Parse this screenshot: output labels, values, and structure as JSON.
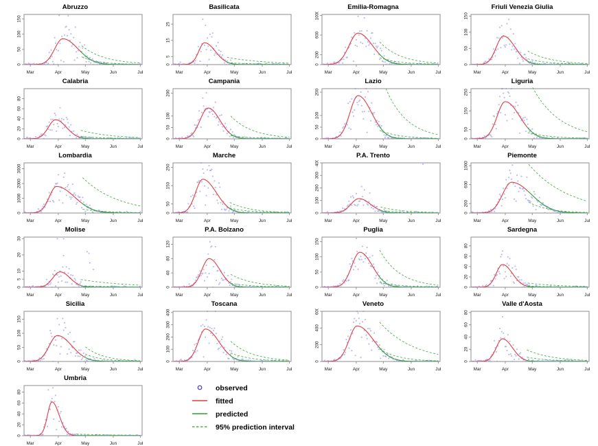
{
  "figure": {
    "background": "#ffffff"
  },
  "colors": {
    "observed_point": "#8f8ff0",
    "observed_legend": "#3b3bd1",
    "fitted": "#e23b3b",
    "predicted": "#2f9e2f",
    "interval": "#4eb04e",
    "box": "#8c8c8c",
    "tick_text": "#1a1a1a"
  },
  "legend": {
    "items": [
      {
        "label": "observed",
        "type": "point"
      },
      {
        "label": "fitted",
        "type": "line-solid-red"
      },
      {
        "label": "predicted",
        "type": "line-solid-green"
      },
      {
        "label": "95% prediction interval",
        "type": "line-dashed-green"
      }
    ]
  },
  "chart_data": {
    "type": "scatter",
    "description": "Small-multiples of daily counts by Italian region: observed points, fitted curve (red), predicted curve (green), 95% prediction interval (green dashed)",
    "layout": {
      "rows": 6,
      "cols": 4,
      "legend_cell": {
        "row": 6,
        "col": 2
      }
    },
    "x_ticks": [
      "Mar",
      "Apr",
      "May",
      "Jun",
      "Jul"
    ],
    "x_tick_days": [
      0,
      31,
      61,
      92,
      122
    ],
    "x_domain": [
      -7,
      124
    ],
    "data_start_day": -6,
    "panels": [
      {
        "title": "Abruzzo",
        "ylim": [
          0,
          165
        ],
        "yticks": [
          0,
          50,
          100,
          150
        ],
        "fit": [
          85,
          36,
          9,
          17,
          56
        ],
        "upper": [
          62,
          5
        ],
        "lower": [
          26,
          0.8
        ],
        "obs": {
          "cv": 0.42,
          "seed": 1,
          "scale_end": 1,
          "max": 160
        }
      },
      {
        "title": "Basilicata",
        "ylim": [
          0,
          31
        ],
        "yticks": [
          0,
          5,
          15,
          25
        ],
        "fit": [
          13.5,
          28,
          6.5,
          12,
          52
        ],
        "upper": [
          4.5,
          0.9
        ],
        "lower": [
          1.2,
          0.15
        ],
        "obs": {
          "cv": 0.5,
          "seed": 2,
          "scale_end": 1,
          "max": 30
        }
      },
      {
        "title": "Emilia-Romagna",
        "ylim": [
          0,
          1020
        ],
        "yticks": [
          0,
          200,
          600,
          1000
        ],
        "fit": [
          640,
          33,
          10,
          16,
          56
        ],
        "upper": [
          460,
          30
        ],
        "lower": [
          140,
          8
        ],
        "obs": {
          "cv": 0.32,
          "seed": 3,
          "scale_end": 1,
          "max": 980
        }
      },
      {
        "title": "Friuli Venezia Giulia",
        "ylim": [
          0,
          155
        ],
        "yticks": [
          0,
          50,
          100,
          150
        ],
        "fit": [
          88,
          29,
          8,
          13,
          55
        ],
        "upper": [
          42,
          3.5
        ],
        "lower": [
          18,
          1
        ],
        "obs": {
          "cv": 0.4,
          "seed": 4,
          "scale_end": 1,
          "max": 150
        }
      },
      {
        "title": "Calabria",
        "ylim": [
          0,
          100
        ],
        "yticks": [
          0,
          20,
          40,
          60,
          80
        ],
        "fit": [
          38,
          28,
          8,
          12,
          55
        ],
        "upper": [
          17,
          2.5
        ],
        "lower": [
          5,
          0.4
        ],
        "obs": {
          "cv": 0.45,
          "seed": 5,
          "scale_end": 1,
          "max": 97
        }
      },
      {
        "title": "Campania",
        "ylim": [
          0,
          220
        ],
        "yticks": [
          0,
          50,
          100,
          200
        ],
        "fit": [
          135,
          32,
          9,
          13,
          56
        ],
        "upper": [
          100,
          7
        ],
        "lower": [
          14,
          1
        ],
        "obs": {
          "cv": 0.35,
          "seed": 6,
          "scale_end": 1,
          "max": 215
        }
      },
      {
        "title": "Lazio",
        "ylim": [
          0,
          215
        ],
        "yticks": [
          0,
          50,
          100,
          200
        ],
        "fit": [
          185,
          33,
          9,
          15,
          56
        ],
        "upper": [
          290,
          18
        ],
        "lower": [
          36,
          2
        ],
        "obs": {
          "cv": 0.3,
          "seed": 7,
          "scale_end": 0.25,
          "max": 210
        }
      },
      {
        "title": "Liguria",
        "ylim": [
          0,
          270
        ],
        "yticks": [
          0,
          50,
          150,
          250
        ],
        "fit": [
          200,
          31,
          9,
          16,
          55
        ],
        "upper": [
          330,
          38
        ],
        "lower": [
          33,
          3
        ],
        "obs": {
          "cv": 0.35,
          "seed": 8,
          "scale_end": 0.3,
          "max": 260
        }
      },
      {
        "title": "Lombardia",
        "ylim": [
          0,
          3400
        ],
        "yticks": [
          0,
          1000,
          2000,
          3000
        ],
        "fit": [
          1800,
          29,
          8,
          20,
          57
        ],
        "upper": [
          2400,
          480
        ],
        "lower": [
          260,
          25
        ],
        "obs": {
          "cv": 0.32,
          "seed": 9,
          "scale_end": 0.45,
          "max": 3300
        }
      },
      {
        "title": "Marche",
        "ylim": [
          0,
          275
        ],
        "yticks": [
          0,
          50,
          150,
          250
        ],
        "fit": [
          185,
          26,
          8,
          15,
          55
        ],
        "upper": [
          58,
          3.5
        ],
        "lower": [
          28,
          1.5
        ],
        "obs": {
          "cv": 0.35,
          "seed": 10,
          "scale_end": 1,
          "max": 270
        }
      },
      {
        "title": "P.A. Trento",
        "ylim": [
          0,
          400
        ],
        "yticks": [
          0,
          100,
          200,
          300,
          400
        ],
        "fit": [
          115,
          34,
          9,
          13,
          57
        ],
        "upper": [
          48,
          4
        ],
        "lower": [
          22,
          1
        ],
        "obs": {
          "cv": 0.35,
          "seed": 11,
          "scale_end": 1,
          "max": 170,
          "extra": [
            [
              105,
              390
            ]
          ]
        }
      },
      {
        "title": "Piemonte",
        "ylim": [
          0,
          1060
        ],
        "yticks": [
          0,
          200,
          600,
          1000
        ],
        "fit": [
          650,
          38,
          10,
          22,
          56
        ],
        "upper": [
          1030,
          250
        ],
        "lower": [
          230,
          12
        ],
        "obs": {
          "cv": 0.3,
          "seed": 12,
          "scale_end": 0.3,
          "max": 960
        }
      },
      {
        "title": "Molise",
        "ylim": [
          0,
          31
        ],
        "yticks": [
          0,
          5,
          10,
          20,
          30
        ],
        "fit": [
          9.5,
          33,
          8,
          11,
          55
        ],
        "upper": [
          4.8,
          1.3
        ],
        "lower": [
          0.9,
          0.15
        ],
        "obs": {
          "cv": 0.55,
          "seed": 13,
          "scale_end": 1,
          "max": 30,
          "extra": [
            [
              30,
              30
            ],
            [
              37,
              30
            ],
            [
              63,
              22
            ],
            [
              65,
              21
            ],
            [
              66,
              15
            ],
            [
              70,
              11
            ]
          ]
        }
      },
      {
        "title": "P.A. Bolzano",
        "ylim": [
          0,
          140
        ],
        "yticks": [
          0,
          40,
          80,
          120
        ],
        "fit": [
          80,
          33,
          8,
          12,
          56
        ],
        "upper": [
          36,
          3
        ],
        "lower": [
          11,
          0.8
        ],
        "obs": {
          "cv": 0.38,
          "seed": 14,
          "scale_end": 1,
          "max": 140
        }
      },
      {
        "title": "Puglia",
        "ylim": [
          0,
          165
        ],
        "yticks": [
          0,
          50,
          100,
          150
        ],
        "fit": [
          115,
          35,
          9,
          14,
          56
        ],
        "upper": [
          122,
          7
        ],
        "lower": [
          16,
          1
        ],
        "obs": {
          "cv": 0.32,
          "seed": 15,
          "scale_end": 1,
          "max": 160
        }
      },
      {
        "title": "Sardegna",
        "ylim": [
          0,
          97
        ],
        "yticks": [
          0,
          20,
          40,
          60,
          80
        ],
        "fit": [
          44,
          28,
          7,
          11,
          55
        ],
        "upper": [
          8,
          1.5
        ],
        "lower": [
          2.5,
          0.25
        ],
        "obs": {
          "cv": 0.5,
          "seed": 16,
          "scale_end": 1,
          "max": 95
        }
      },
      {
        "title": "Sicilia",
        "ylim": [
          0,
          178
        ],
        "yticks": [
          0,
          50,
          100,
          150
        ],
        "fit": [
          92,
          30,
          9,
          16,
          60
        ],
        "upper": [
          52,
          2.5
        ],
        "lower": [
          26,
          1
        ],
        "obs": {
          "cv": 0.4,
          "seed": 17,
          "scale_end": 1,
          "max": 175
        }
      },
      {
        "title": "Toscana",
        "ylim": [
          0,
          410
        ],
        "yticks": [
          0,
          100,
          200,
          300,
          400
        ],
        "fit": [
          265,
          29,
          8,
          15,
          56
        ],
        "upper": [
          165,
          11
        ],
        "lower": [
          70,
          4
        ],
        "obs": {
          "cv": 0.32,
          "seed": 18,
          "scale_end": 1,
          "max": 400
        }
      },
      {
        "title": "Veneto",
        "ylim": [
          0,
          600
        ],
        "yticks": [
          0,
          200,
          400,
          600
        ],
        "fit": [
          425,
          32,
          9,
          18,
          56
        ],
        "upper": [
          470,
          85
        ],
        "lower": [
          150,
          7
        ],
        "obs": {
          "cv": 0.3,
          "seed": 19,
          "scale_end": 0.25,
          "max": 580
        }
      },
      {
        "title": "Valle d'Aosta",
        "ylim": [
          0,
          82
        ],
        "yticks": [
          0,
          20,
          40,
          60,
          80
        ],
        "fit": [
          37,
          28,
          7,
          11,
          54
        ],
        "upper": [
          19,
          1.8
        ],
        "lower": [
          7,
          0.5
        ],
        "obs": {
          "cv": 0.5,
          "seed": 20,
          "scale_end": 1,
          "max": 78
        }
      },
      {
        "title": "Umbria",
        "ylim": [
          0,
          92
        ],
        "yticks": [
          0,
          20,
          40,
          60,
          80
        ],
        "fit": [
          62,
          24,
          5,
          8,
          50
        ],
        "upper": [
          3,
          0.7
        ],
        "lower": [
          0.8,
          0.12
        ],
        "obs": {
          "cv": 0.4,
          "seed": 21,
          "scale_end": 1,
          "max": 90
        }
      }
    ]
  }
}
